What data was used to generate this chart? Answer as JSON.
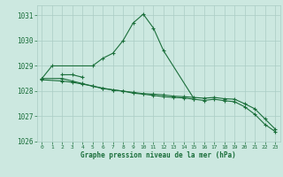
{
  "title": "Graphe pression niveau de la mer (hPa)",
  "bg_color": "#cce8e0",
  "grid_color": "#aaccc4",
  "line_color": "#1a6e3a",
  "xlim": [
    -0.5,
    23.5
  ],
  "ylim": [
    1026,
    1031.4
  ],
  "yticks": [
    1026,
    1027,
    1028,
    1029,
    1030,
    1031
  ],
  "xticks": [
    0,
    1,
    2,
    3,
    4,
    5,
    6,
    7,
    8,
    9,
    10,
    11,
    12,
    13,
    14,
    15,
    16,
    17,
    18,
    19,
    20,
    21,
    22,
    23
  ],
  "series_full": [
    {
      "x": [
        0,
        1,
        5,
        6,
        7,
        8,
        9,
        10,
        11,
        12,
        15
      ],
      "y": [
        1028.5,
        1029.0,
        1029.0,
        1029.3,
        1029.5,
        1030.0,
        1030.7,
        1031.05,
        1030.5,
        1029.6,
        1027.7
      ]
    },
    {
      "x": [
        2,
        3,
        4
      ],
      "y": [
        1028.65,
        1028.65,
        1028.55
      ]
    },
    {
      "x": [
        0,
        2,
        3,
        4,
        5,
        6,
        7,
        8,
        9,
        10,
        11,
        12,
        13,
        14,
        15,
        16,
        17,
        18,
        19,
        20,
        21,
        22,
        23
      ],
      "y": [
        1028.5,
        1028.5,
        1028.4,
        1028.3,
        1028.2,
        1028.1,
        1028.05,
        1028.0,
        1027.95,
        1027.9,
        1027.88,
        1027.85,
        1027.8,
        1027.78,
        1027.75,
        1027.72,
        1027.75,
        1027.7,
        1027.68,
        1027.5,
        1027.3,
        1026.9,
        1026.5
      ]
    },
    {
      "x": [
        0,
        2,
        3,
        4,
        5,
        6,
        7,
        8,
        9,
        10,
        11,
        12,
        13,
        14,
        15,
        16,
        17,
        18,
        19,
        20,
        21,
        22,
        23
      ],
      "y": [
        1028.45,
        1028.4,
        1028.35,
        1028.28,
        1028.2,
        1028.12,
        1028.05,
        1028.0,
        1027.92,
        1027.88,
        1027.83,
        1027.78,
        1027.75,
        1027.73,
        1027.68,
        1027.63,
        1027.68,
        1027.62,
        1027.58,
        1027.38,
        1027.08,
        1026.68,
        1026.4
      ]
    }
  ]
}
